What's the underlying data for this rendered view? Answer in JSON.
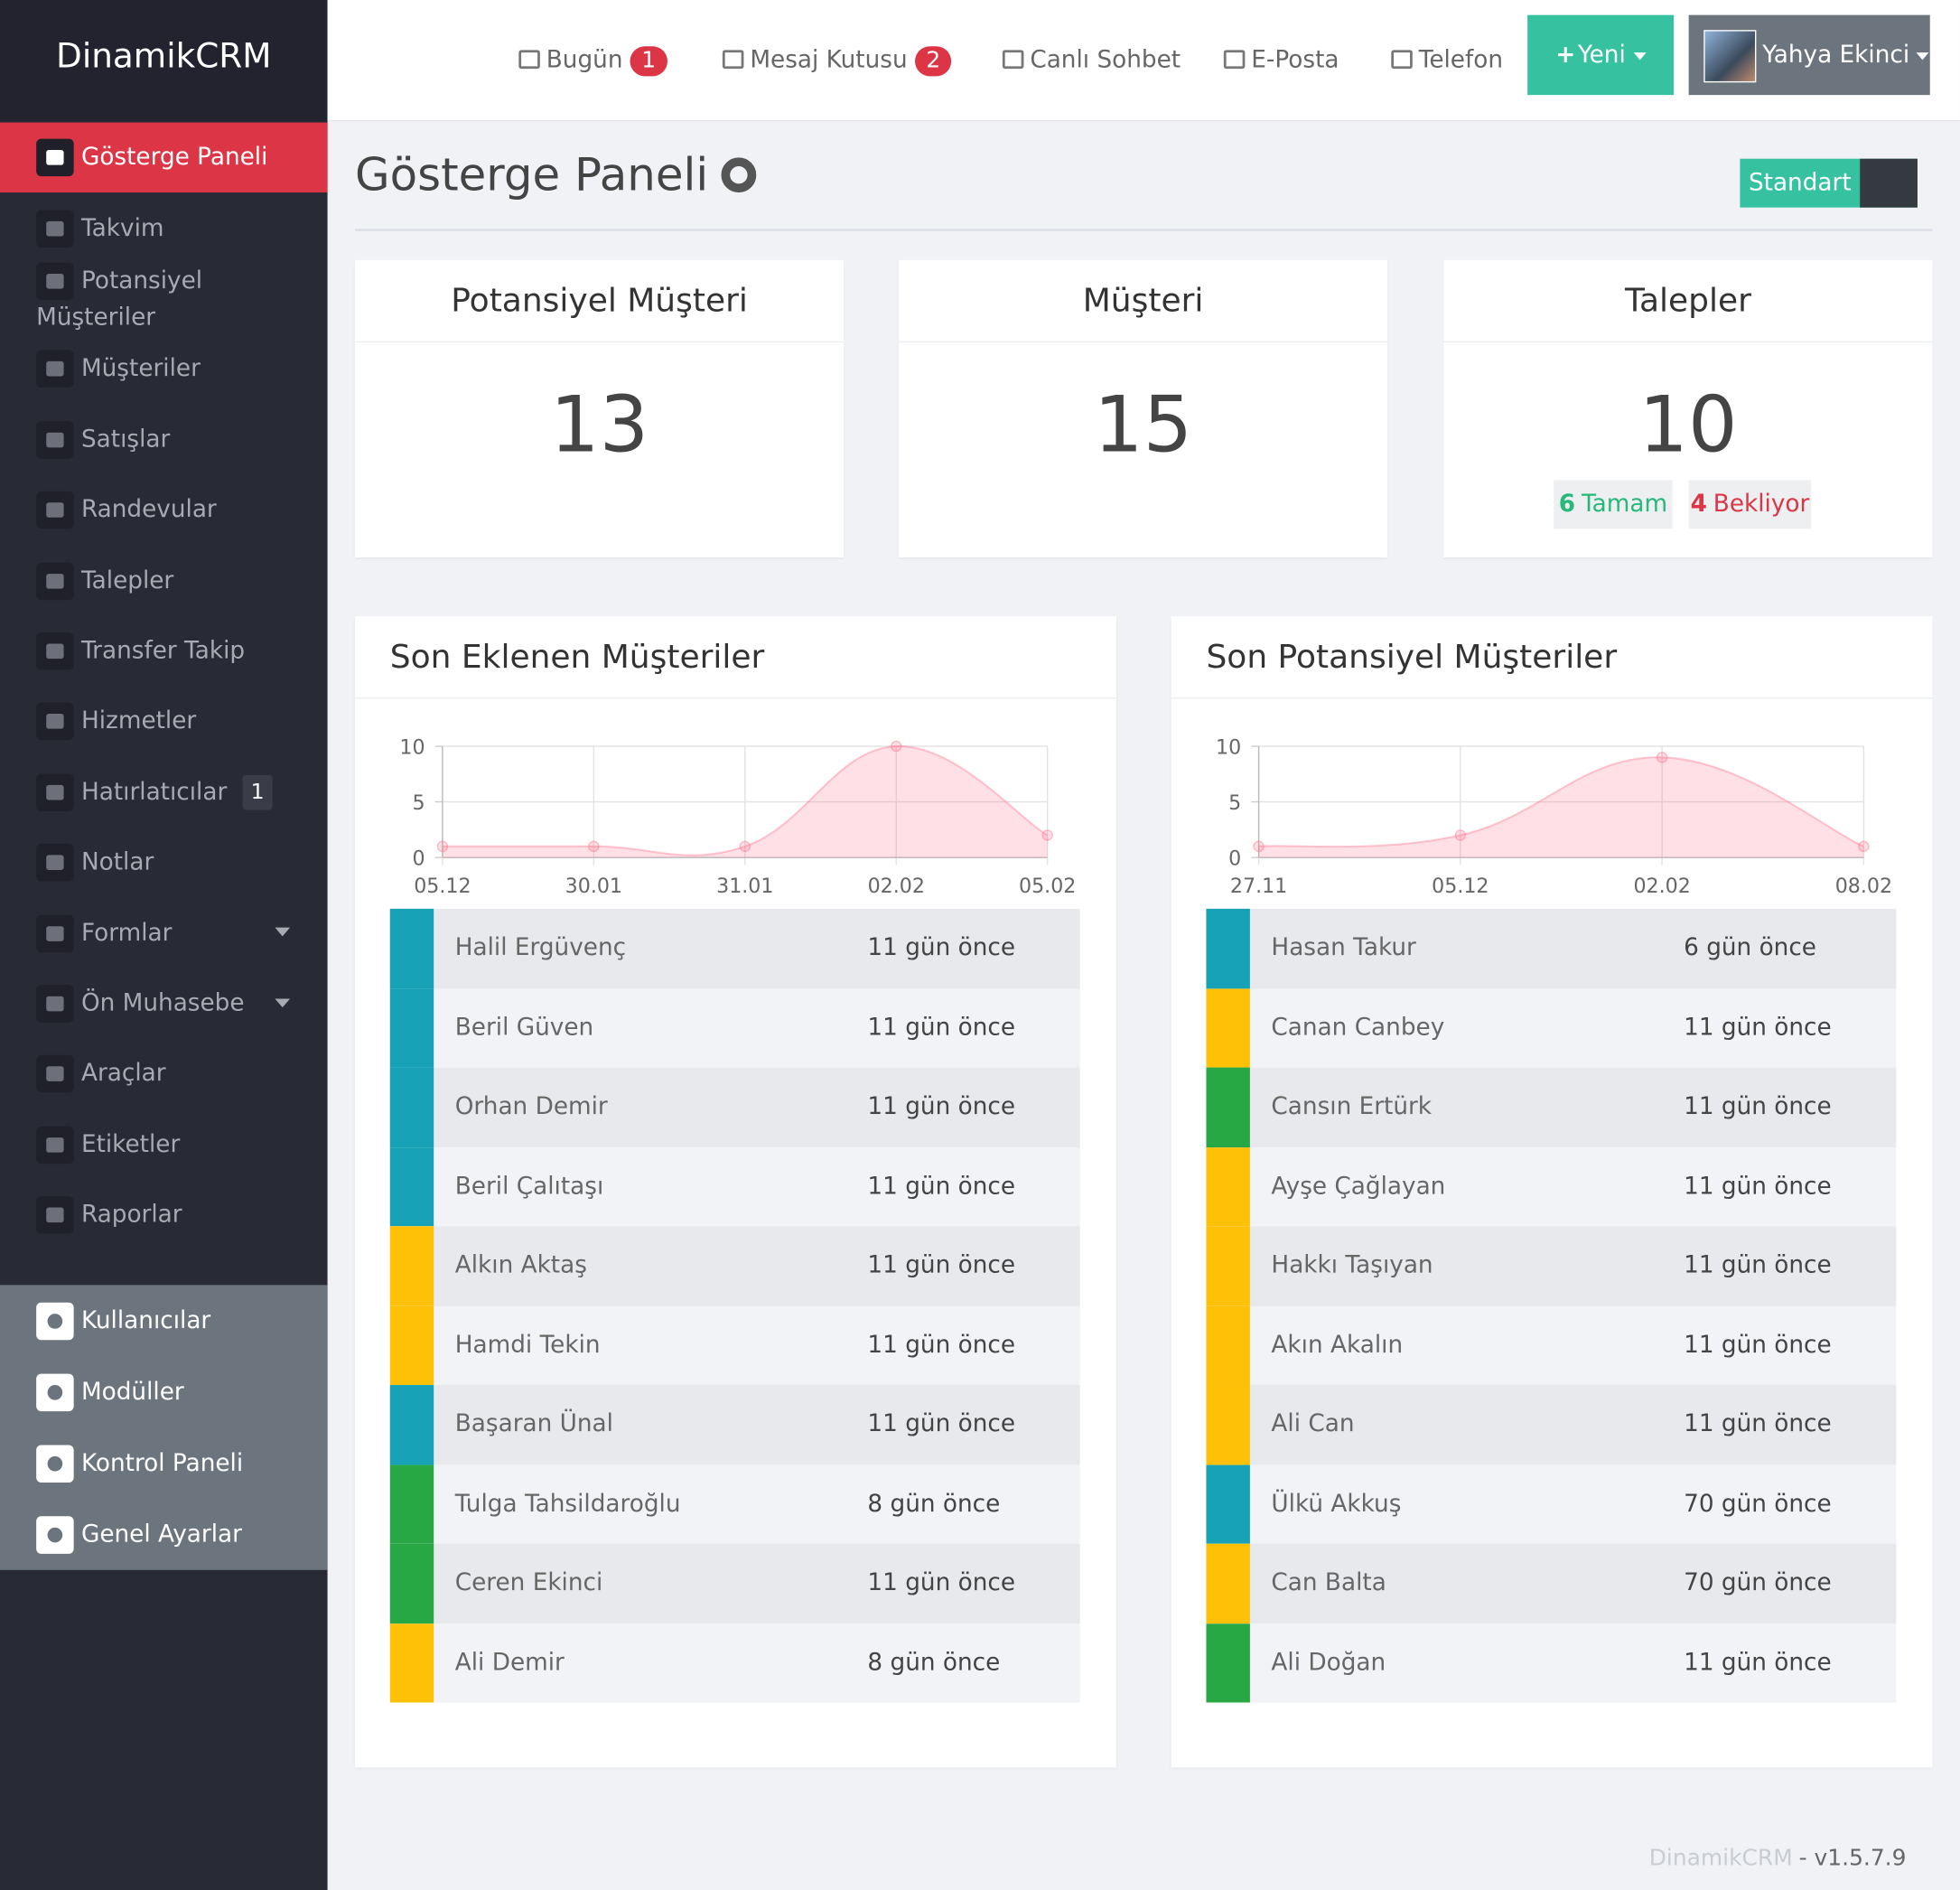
{
  "brand": "DinamikCRM",
  "topbar": {
    "items": [
      {
        "label": "Bugün",
        "badge": "1"
      },
      {
        "label": "Mesaj Kutusu",
        "badge": "2"
      },
      {
        "label": "Canlı Sohbet"
      },
      {
        "label": "E-Posta"
      },
      {
        "label": "Telefon"
      }
    ],
    "new_button": "Yeni",
    "user": "Yahya Ekinci"
  },
  "sidebar": {
    "items": [
      {
        "label": "Gösterge Paneli"
      },
      {
        "label": "Takvim"
      },
      {
        "label": "Potansiyel Müşteriler"
      },
      {
        "label": "Müşteriler"
      },
      {
        "label": "Satışlar"
      },
      {
        "label": "Randevular"
      },
      {
        "label": "Talepler"
      },
      {
        "label": "Transfer Takip"
      },
      {
        "label": "Hizmetler"
      },
      {
        "label": "Hatırlatıcılar",
        "badge": "1"
      },
      {
        "label": "Notlar"
      },
      {
        "label": "Formlar"
      },
      {
        "label": "Ön Muhasebe"
      },
      {
        "label": "Araçlar"
      },
      {
        "label": "Etiketler"
      },
      {
        "label": "Raporlar"
      }
    ],
    "admin": [
      {
        "label": "Kullanıcılar"
      },
      {
        "label": "Modüller"
      },
      {
        "label": "Kontrol Paneli"
      },
      {
        "label": "Genel Ayarlar"
      }
    ]
  },
  "page": {
    "title": "Gösterge Paneli",
    "mode_button": "Standart"
  },
  "stats": [
    {
      "title": "Potansiyel Müşteri",
      "value": "13"
    },
    {
      "title": "Müşteri",
      "value": "15"
    },
    {
      "title": "Talepler",
      "value": "10",
      "done": "6",
      "done_label": "Tamam",
      "waiting": "4",
      "waiting_label": "Bekliyor"
    }
  ],
  "panels": [
    {
      "title": "Son Eklenen Müşteriler",
      "chart": {
        "type": "line",
        "categories": [
          "05.12",
          "30.01",
          "31.01",
          "02.02",
          "05.02"
        ],
        "values": [
          1,
          1,
          1,
          10,
          2
        ],
        "ylim": [
          0,
          10
        ],
        "yticks": [
          0,
          5,
          10
        ],
        "color": "#ff6384",
        "grid": true
      },
      "rows": [
        {
          "name": "Halil Ergüvenç",
          "time": "11 gün önce",
          "color": "#17a2b8"
        },
        {
          "name": "Beril Güven",
          "time": "11 gün önce",
          "color": "#17a2b8"
        },
        {
          "name": "Orhan Demir",
          "time": "11 gün önce",
          "color": "#17a2b8"
        },
        {
          "name": "Beril Çalıtaşı",
          "time": "11 gün önce",
          "color": "#17a2b8"
        },
        {
          "name": "Alkın Aktaş",
          "time": "11 gün önce",
          "color": "#ffc107"
        },
        {
          "name": "Hamdi Tekin",
          "time": "11 gün önce",
          "color": "#ffc107"
        },
        {
          "name": "Başaran Ünal",
          "time": "11 gün önce",
          "color": "#17a2b8"
        },
        {
          "name": "Tulga Tahsildaroğlu",
          "time": "8 gün önce",
          "color": "#28a745"
        },
        {
          "name": "Ceren Ekinci",
          "time": "11 gün önce",
          "color": "#28a745"
        },
        {
          "name": "Ali Demir",
          "time": "8 gün önce",
          "color": "#ffc107"
        }
      ]
    },
    {
      "title": "Son Potansiyel Müşteriler",
      "chart": {
        "type": "line",
        "categories": [
          "27.11",
          "05.12",
          "02.02",
          "08.02"
        ],
        "values": [
          1,
          2,
          9,
          1
        ],
        "ylim": [
          0,
          10
        ],
        "yticks": [
          0,
          5,
          10
        ],
        "color": "#ff6384",
        "grid": true
      },
      "rows": [
        {
          "name": "Hasan Takur",
          "time": "6 gün önce",
          "color": "#17a2b8"
        },
        {
          "name": "Canan Canbey",
          "time": "11 gün önce",
          "color": "#ffc107"
        },
        {
          "name": "Cansın Ertürk",
          "time": "11 gün önce",
          "color": "#28a745"
        },
        {
          "name": "Ayşe Çağlayan",
          "time": "11 gün önce",
          "color": "#ffc107"
        },
        {
          "name": "Hakkı Taşıyan",
          "time": "11 gün önce",
          "color": "#ffc107"
        },
        {
          "name": "Akın Akalın",
          "time": "11 gün önce",
          "color": "#ffc107"
        },
        {
          "name": "Ali Can",
          "time": "11 gün önce",
          "color": "#ffc107"
        },
        {
          "name": "Ülkü Akkuş",
          "time": "70 gün önce",
          "color": "#17a2b8"
        },
        {
          "name": "Can Balta",
          "time": "70 gün önce",
          "color": "#ffc107"
        },
        {
          "name": "Ali Doğan",
          "time": "11 gün önce",
          "color": "#28a745"
        }
      ]
    }
  ],
  "footer": {
    "brand": "DinamikCRM",
    "version": "- v1.5.7.9"
  }
}
